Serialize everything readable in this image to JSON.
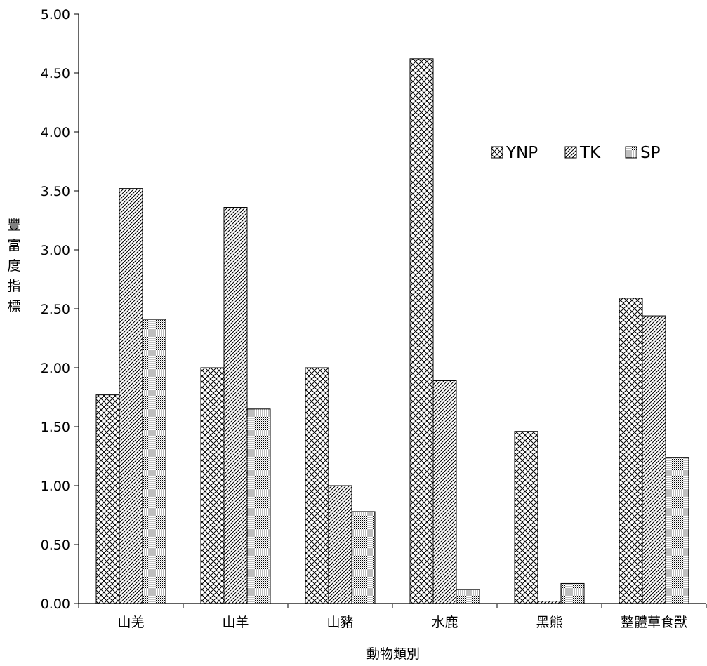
{
  "chart_data": {
    "type": "bar",
    "title": "",
    "xlabel": "動物類別",
    "ylabel": "豐富度指標",
    "categories": [
      "山羌",
      "山羊",
      "山豬",
      "水鹿",
      "黑熊",
      "整體草食獸"
    ],
    "series": [
      {
        "name": "YNP",
        "pattern": "crosshatch",
        "values": [
          1.77,
          2.0,
          2.0,
          4.62,
          1.46,
          2.59
        ]
      },
      {
        "name": "TK",
        "pattern": "diagonal",
        "values": [
          3.52,
          3.36,
          1.0,
          1.89,
          0.02,
          2.44
        ]
      },
      {
        "name": "SP",
        "pattern": "dots",
        "values": [
          2.41,
          1.65,
          0.78,
          0.12,
          0.17,
          1.24
        ]
      }
    ],
    "ylim": [
      0,
      5
    ],
    "yticks": [
      "0.00",
      "0.50",
      "1.00",
      "1.50",
      "2.00",
      "2.50",
      "3.00",
      "3.50",
      "4.00",
      "4.50",
      "5.00"
    ],
    "grid": false,
    "legend_position": "top-right",
    "bar_fill": "#ffffff",
    "pattern_color": "#000000"
  }
}
